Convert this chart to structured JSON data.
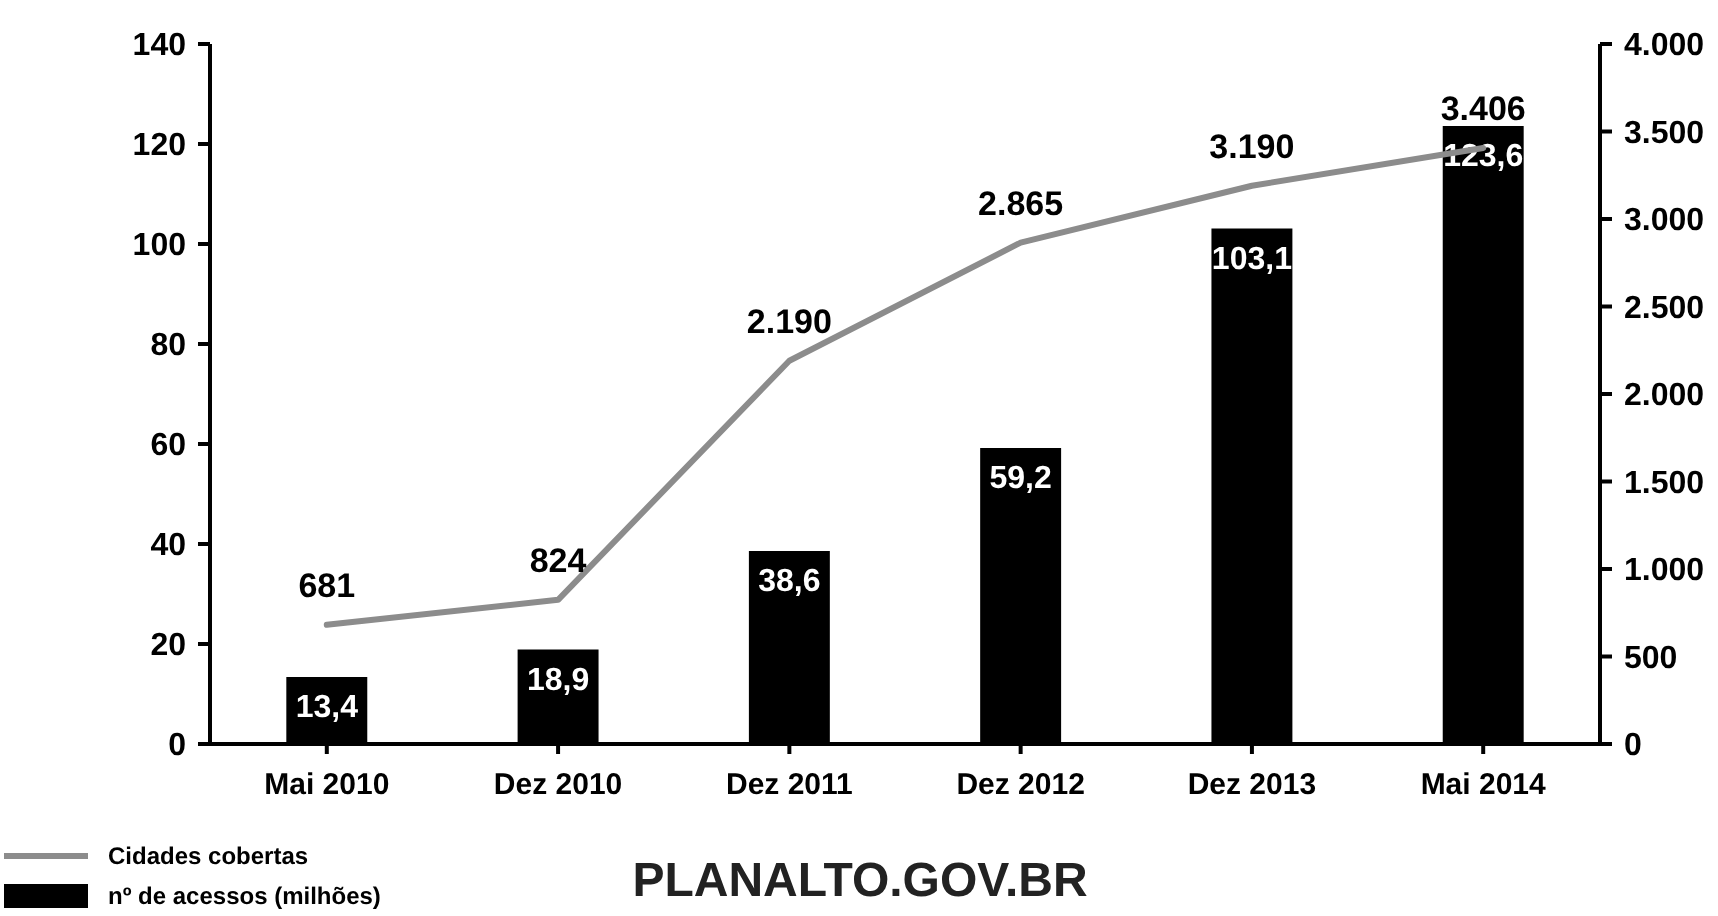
{
  "chart_data": {
    "type": "bar",
    "categories": [
      "Mai 2010",
      "Dez 2010",
      "Dez 2011",
      "Dez 2012",
      "Dez 2013",
      "Mai 2014"
    ],
    "series": [
      {
        "name": "Cidades cobertas",
        "type": "line",
        "axis": "y2",
        "color": "#8c8c8c",
        "values": [
          681,
          824,
          2190,
          2865,
          3190,
          3406
        ],
        "value_labels": [
          "681",
          "824",
          "2.190",
          "2.865",
          "3.190",
          "3.406"
        ]
      },
      {
        "name": "nº de acessos (milhões)",
        "color": "#000000",
        "values": [
          13.4,
          18.9,
          38.6,
          59.2,
          103.1,
          123.6
        ],
        "value_labels": [
          "13,4",
          "18,9",
          "38,6",
          "59,2",
          "103,1",
          "123,6"
        ]
      }
    ],
    "ylim": [
      0,
      140
    ],
    "yticks": [
      0,
      20,
      40,
      60,
      80,
      100,
      120,
      140
    ],
    "y2lim": [
      0,
      4000
    ],
    "y2ticks": [
      {
        "value": 0,
        "label": "0"
      },
      {
        "value": 500,
        "label": "500"
      },
      {
        "value": 1000,
        "label": "1.000"
      },
      {
        "value": 1500,
        "label": "1.500"
      },
      {
        "value": 2000,
        "label": "2.000"
      },
      {
        "value": 2500,
        "label": "2.500"
      },
      {
        "value": 3000,
        "label": "3.000"
      },
      {
        "value": 3500,
        "label": "3.500"
      },
      {
        "value": 4000,
        "label": "4.000"
      }
    ],
    "grid": false,
    "legend": "bottom left",
    "annotations": [
      "PLANALTO.GOV.BR"
    ]
  }
}
